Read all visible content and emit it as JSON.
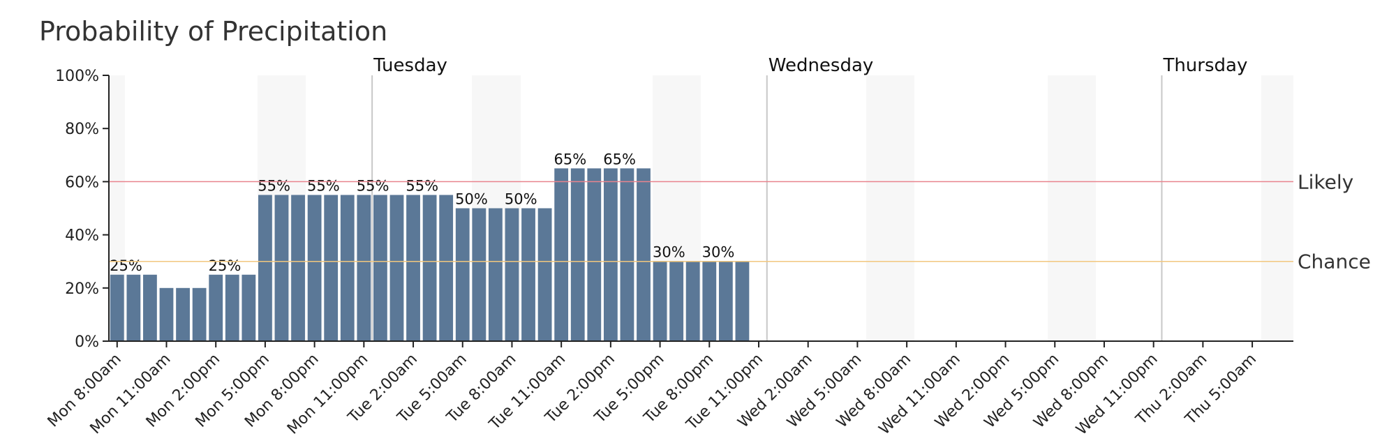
{
  "chart_data": {
    "type": "bar",
    "title": "Probability of Precipitation",
    "categories": [
      "Mon 8:00am",
      null,
      null,
      "Mon 11:00am",
      null,
      null,
      "Mon 2:00pm",
      null,
      null,
      "Mon 5:00pm",
      null,
      null,
      "Mon 8:00pm",
      null,
      null,
      "Mon 11:00pm",
      null,
      null,
      "Tue 2:00am",
      null,
      null,
      "Tue 5:00am",
      null,
      null,
      "Tue 8:00am",
      null,
      null,
      "Tue 11:00am",
      null,
      null,
      "Tue 2:00pm",
      null,
      null,
      "Tue 5:00pm",
      null,
      null,
      "Tue 8:00pm",
      null,
      null,
      "Tue 11:00pm",
      null,
      null,
      "Wed 2:00am",
      null,
      null,
      "Wed 5:00am",
      null,
      null,
      "Wed 8:00am",
      null,
      null,
      "Wed 11:00am",
      null,
      null,
      "Wed 2:00pm",
      null,
      null,
      "Wed 5:00pm",
      null,
      null,
      "Wed 8:00pm",
      null,
      null,
      "Wed 11:00pm",
      null,
      null,
      "Thu 2:00am",
      null,
      null,
      "Thu 5:00am",
      null,
      null
    ],
    "values": [
      25,
      25,
      25,
      20,
      20,
      20,
      25,
      25,
      25,
      55,
      55,
      55,
      55,
      55,
      55,
      55,
      55,
      55,
      55,
      55,
      55,
      50,
      50,
      50,
      50,
      50,
      50,
      65,
      65,
      65,
      65,
      65,
      65,
      30,
      30,
      30,
      30,
      30,
      30,
      null,
      null,
      null,
      null,
      null,
      null,
      null,
      null,
      null,
      null,
      null,
      null,
      null,
      null,
      null,
      null,
      null,
      null,
      null,
      null,
      null,
      null,
      null,
      null,
      null,
      null,
      null,
      null,
      null,
      null,
      null,
      null,
      null
    ],
    "value_labels": [
      "25%",
      null,
      null,
      null,
      null,
      null,
      "25%",
      null,
      null,
      "55%",
      null,
      null,
      "55%",
      null,
      null,
      "55%",
      null,
      null,
      "55%",
      null,
      null,
      "50%",
      null,
      null,
      "50%",
      null,
      null,
      "65%",
      null,
      null,
      "65%",
      null,
      null,
      "30%",
      null,
      null,
      "30%",
      null,
      null,
      null,
      null,
      null,
      null,
      null,
      null,
      null,
      null,
      null,
      null,
      null,
      null,
      null,
      null,
      null,
      null,
      null,
      null,
      null,
      null,
      null,
      null,
      null,
      null,
      null,
      null,
      null,
      null,
      null,
      null,
      null,
      null,
      null
    ],
    "color": "#5b7897",
    "ylim": [
      0,
      100
    ],
    "yticks": [
      {
        "value": 0,
        "label": "0%"
      },
      {
        "value": 20,
        "label": "20%"
      },
      {
        "value": 40,
        "label": "40%"
      },
      {
        "value": 60,
        "label": "60%"
      },
      {
        "value": 80,
        "label": "80%"
      },
      {
        "value": 100,
        "label": "100%"
      }
    ],
    "days": [
      {
        "label": "Tuesday",
        "index": 16
      },
      {
        "label": "Wednesday",
        "index": 40
      },
      {
        "label": "Thursday",
        "index": 64
      }
    ],
    "thresholds": [
      {
        "label": "Likely",
        "value": 60,
        "color": "#e8848e"
      },
      {
        "label": "Chance",
        "value": 30,
        "color": "#f2c77e"
      }
    ]
  }
}
